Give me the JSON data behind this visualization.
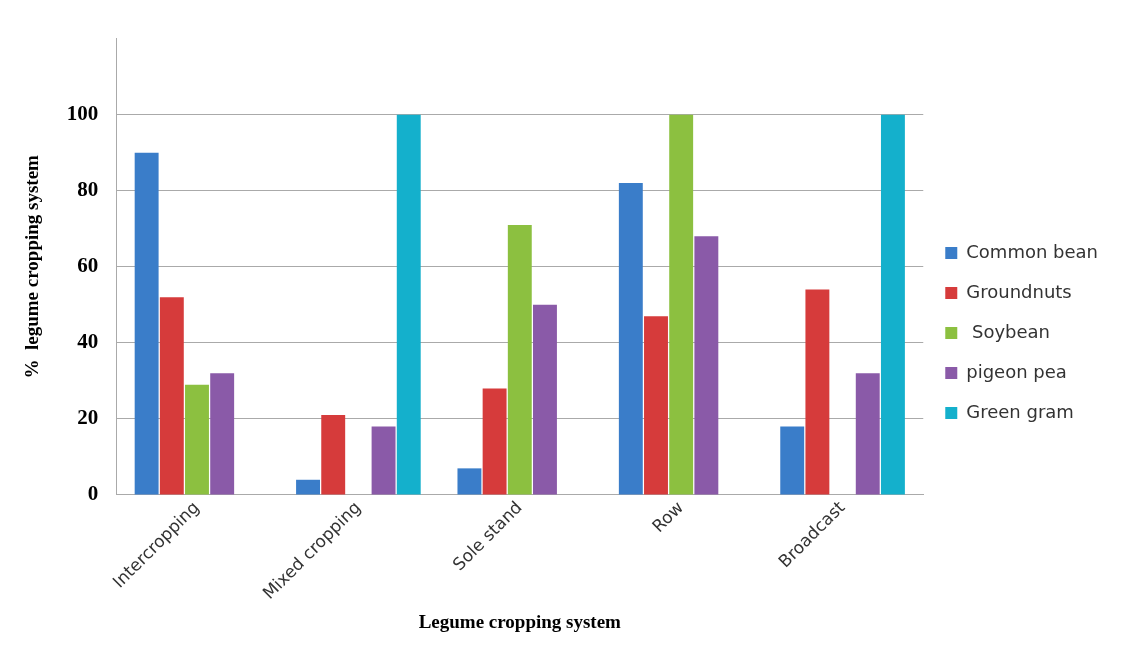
{
  "chart_data": {
    "type": "bar",
    "xlabel": "Legume cropping system",
    "ylabel": "%  legume cropping system",
    "categories": [
      "Intercropping",
      "Mixed cropping",
      "Sole stand",
      "Row",
      "Broadcast"
    ],
    "series": [
      {
        "name": "Common bean",
        "color": "#3a7dc9",
        "values": [
          90,
          4,
          7,
          82,
          18
        ]
      },
      {
        "name": "Groundnuts",
        "color": "#d63b3b",
        "values": [
          52,
          21,
          28,
          47,
          54
        ]
      },
      {
        "name": " Soybean",
        "color": "#8cc040",
        "values": [
          29,
          null,
          71,
          100,
          null
        ]
      },
      {
        "name": "pigeon pea",
        "color": "#8a5aa8",
        "values": [
          32,
          18,
          50,
          68,
          32
        ]
      },
      {
        "name": "Green gram",
        "color": "#14b0cc",
        "values": [
          null,
          100,
          null,
          null,
          100
        ]
      }
    ],
    "ylim": [
      0,
      120
    ],
    "yticks": [
      0,
      20,
      40,
      60,
      80,
      100
    ],
    "grid": "y",
    "legend": "right"
  }
}
